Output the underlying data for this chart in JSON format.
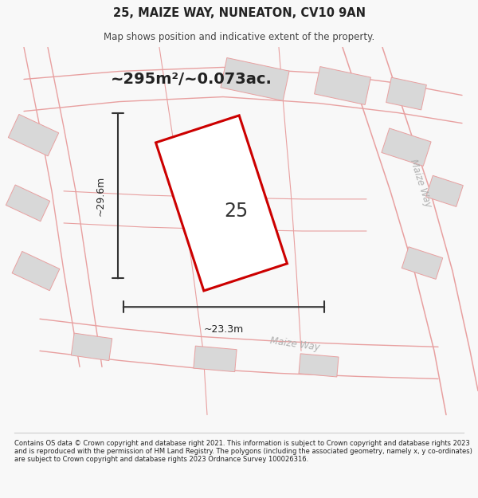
{
  "title": "25, MAIZE WAY, NUNEATON, CV10 9AN",
  "subtitle": "Map shows position and indicative extent of the property.",
  "area_text": "~295m²/~0.073ac.",
  "label_25": "25",
  "dim_h": "~29.6m",
  "dim_w": "~23.3m",
  "maize_way_label1": "Maize Way",
  "maize_way_label2": "Maize Way",
  "footer": "Contains OS data © Crown copyright and database right 2021. This information is subject to Crown copyright and database rights 2023 and is reproduced with the permission of HM Land Registry. The polygons (including the associated geometry, namely x, y co-ordinates) are subject to Crown copyright and database rights 2023 Ordnance Survey 100026316.",
  "bg_color": "#f8f8f8",
  "map_bg": "#f9f9f9",
  "building_fill": "#d8d8d8",
  "road_line_color": "#e8a0a0",
  "red_plot_color": "#cc0000",
  "dim_line_color": "#333333",
  "text_color": "#222222",
  "light_text_color": "#b0b0b0"
}
